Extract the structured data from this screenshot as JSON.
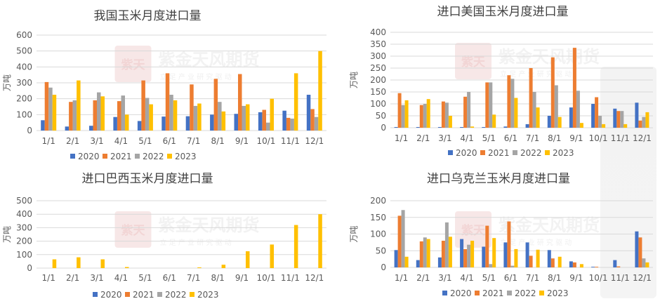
{
  "watermark": {
    "brand": "紫金天风期货",
    "sub": "立 足 产 业   研 究 驱 动",
    "seal": "紫天金风"
  },
  "colors": {
    "s2020": "#4472C4",
    "s2021": "#ED7D31",
    "s2022": "#A5A5A5",
    "s2023": "#FFC000",
    "grid": "#D9D9D9",
    "text": "#595959",
    "title": "#404040"
  },
  "chart_data": [
    {
      "type": "bar",
      "title": "我国玉米月度进口量",
      "ylabel": "万吨",
      "ylim": [
        0,
        600
      ],
      "yticks": [
        0,
        100,
        200,
        300,
        400,
        500,
        600
      ],
      "categories": [
        "1/1",
        "2/1",
        "3/1",
        "4/1",
        "5/1",
        "6/1",
        "7/1",
        "8/1",
        "9/1",
        "10/1",
        "11/1",
        "12/1"
      ],
      "legend": "bottom",
      "grid": true,
      "series": [
        {
          "name": "2020",
          "values": [
            65,
            25,
            30,
            85,
            60,
            88,
            90,
            100,
            105,
            115,
            125,
            225
          ]
        },
        {
          "name": "2021",
          "values": [
            305,
            180,
            190,
            185,
            315,
            360,
            290,
            325,
            355,
            130,
            80,
            135
          ]
        },
        {
          "name": "2022",
          "values": [
            270,
            190,
            240,
            220,
            205,
            225,
            155,
            180,
            155,
            50,
            75,
            85
          ]
        },
        {
          "name": "2023",
          "values": [
            225,
            315,
            215,
            100,
            165,
            190,
            170,
            120,
            165,
            200,
            360,
            500
          ]
        }
      ]
    },
    {
      "type": "bar",
      "title": "进口美国玉米月度进口量",
      "ylabel": "万吨",
      "ylim": [
        0,
        400
      ],
      "yticks": [
        0,
        50,
        100,
        150,
        200,
        250,
        300,
        350,
        400
      ],
      "categories": [
        "1/1",
        "2/1",
        "3/1",
        "4/1",
        "5/1",
        "6/1",
        "7/1",
        "8/1",
        "9/1",
        "10/1",
        "11/1",
        "12/1"
      ],
      "legend": "bottom",
      "grid": true,
      "series": [
        {
          "name": "2020",
          "values": [
            3,
            3,
            3,
            3,
            3,
            5,
            15,
            50,
            85,
            100,
            80,
            105
          ]
        },
        {
          "name": "2021",
          "values": [
            145,
            95,
            110,
            130,
            190,
            220,
            250,
            295,
            335,
            128,
            70,
            30
          ]
        },
        {
          "name": "2022",
          "values": [
            95,
            100,
            105,
            150,
            190,
            205,
            150,
            178,
            155,
            50,
            70,
            45
          ]
        },
        {
          "name": "2023",
          "values": [
            115,
            120,
            50,
            5,
            55,
            125,
            85,
            45,
            20,
            15,
            15,
            65
          ]
        }
      ]
    },
    {
      "type": "bar",
      "title": "进口巴西玉米月度进口量",
      "ylabel": "万吨",
      "ylim": [
        0,
        500
      ],
      "yticks": [
        0,
        100,
        200,
        300,
        400,
        500
      ],
      "categories": [
        "1/1",
        "2/1",
        "3/1",
        "4/1",
        "5/1",
        "6/1",
        "7/1",
        "8/1",
        "9/1",
        "10/1",
        "11/1",
        "12/1"
      ],
      "legend": "bottom",
      "grid": true,
      "series": [
        {
          "name": "2020",
          "values": [
            0,
            0,
            0,
            0,
            0,
            0,
            0,
            0,
            0,
            0,
            0,
            0
          ]
        },
        {
          "name": "2021",
          "values": [
            0,
            0,
            0,
            0,
            0,
            0,
            0,
            0,
            0,
            0,
            0,
            0
          ]
        },
        {
          "name": "2022",
          "values": [
            0,
            0,
            0,
            0,
            0,
            0,
            0,
            0,
            0,
            0,
            0,
            0
          ]
        },
        {
          "name": "2023",
          "values": [
            65,
            80,
            65,
            8,
            0,
            0,
            5,
            25,
            125,
            175,
            320,
            400
          ]
        }
      ]
    },
    {
      "type": "bar",
      "title": "进口乌克兰玉米月度进口量",
      "ylabel": "万吨",
      "ylim": [
        0,
        200
      ],
      "yticks": [
        0,
        50,
        100,
        150,
        200
      ],
      "categories": [
        "1/1",
        "2/1",
        "3/1",
        "4/1",
        "5/1",
        "6/1",
        "7/1",
        "8/1",
        "9/1",
        "10/1",
        "11/1",
        "12/1"
      ],
      "legend": "bottom",
      "grid": true,
      "series": [
        {
          "name": "2020",
          "values": [
            52,
            22,
            30,
            85,
            62,
            75,
            75,
            52,
            18,
            2,
            22,
            108
          ]
        },
        {
          "name": "2021",
          "values": [
            155,
            78,
            80,
            55,
            125,
            138,
            35,
            27,
            15,
            2,
            3,
            90
          ]
        },
        {
          "name": "2022",
          "values": [
            172,
            90,
            135,
            68,
            10,
            5,
            0,
            0,
            0,
            0,
            0,
            27
          ]
        },
        {
          "name": "2023",
          "values": [
            32,
            85,
            92,
            80,
            88,
            55,
            53,
            32,
            10,
            0,
            0,
            15
          ]
        }
      ]
    }
  ]
}
